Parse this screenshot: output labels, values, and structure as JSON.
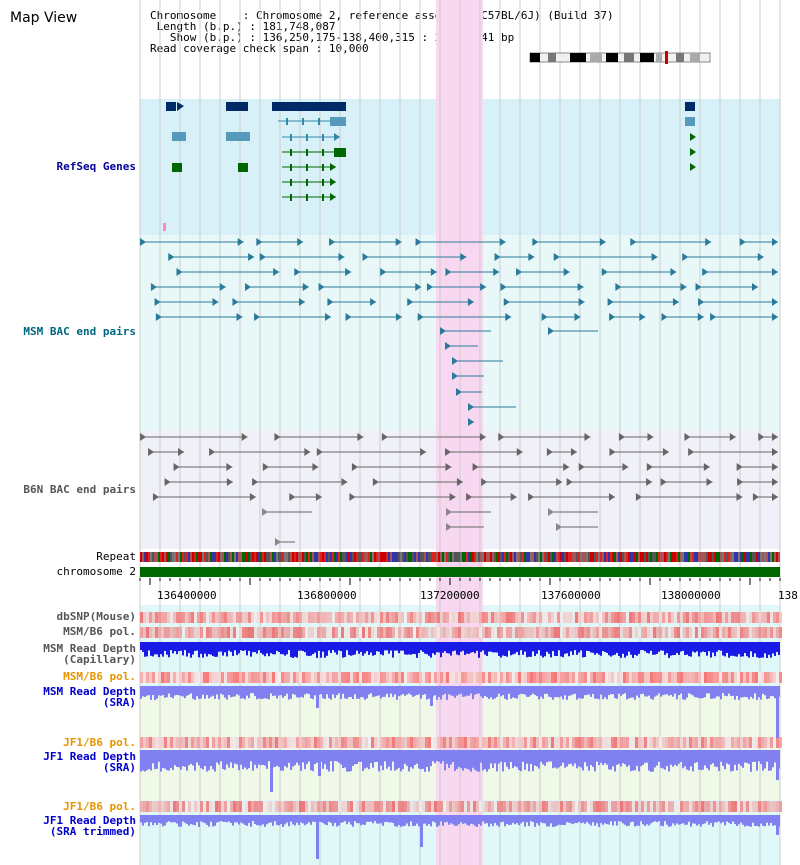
{
  "app": {
    "title": "Map View"
  },
  "info": {
    "chromosome_label": "Chromosome",
    "chromosome_value": "Chromosome 2, reference assembly (C57BL/6J) (Build 37)",
    "length_label": "Length (b.p.)",
    "length_value": "181,748,087",
    "show_label": "Show (b.p.)",
    "show_value": "136,250,175-138,400,315 : 2,150,141 bp",
    "coverage_label": "Read coverage check span",
    "coverage_value": "10,000"
  },
  "tracks": {
    "refseq": "RefSeq Genes",
    "msm_bac": "MSM BAC end pairs",
    "b6n_bac": "B6N BAC end pairs",
    "repeat": "Repeat",
    "chromosome": "chromosome 2",
    "dbsnp": "dbSNP(Mouse)",
    "msm_b6_pol_1": "MSM/B6 pol.",
    "msm_depth_cap": "MSM Read Depth\n(Capillary)",
    "msm_b6_pol_2": "MSM/B6 pol.",
    "msm_depth_sra": "MSM Read Depth\n(SRA)",
    "jf1_b6_pol_1": "JF1/B6 pol.",
    "jf1_depth_sra": "JF1 Read Depth\n(SRA)",
    "jf1_b6_pol_2": "JF1/B6 pol.",
    "jf1_depth_trim": "JF1 Read Depth\n(SRA trimmed)"
  },
  "axis": {
    "ticks": [
      "136400000",
      "136800000",
      "137200000",
      "137600000",
      "138000000",
      "138"
    ]
  },
  "colors": {
    "refseq_bg": "#d8f0f8",
    "bac_msm_bg": "#e8f8f8",
    "bac_b6n_bg": "#f0f0f8",
    "highlight": "#f8d8f0",
    "chromosome_bar": "#006600",
    "depth_capillary": "#1a1ae6",
    "depth_sra": "#8080f0",
    "refseq_label": "#000099",
    "msm_label": "#006680",
    "b6n_label": "#555555",
    "jf1_pol_label": "#e69500"
  },
  "icons": {
    "ideogram": "chromosome-ideogram-icon"
  }
}
